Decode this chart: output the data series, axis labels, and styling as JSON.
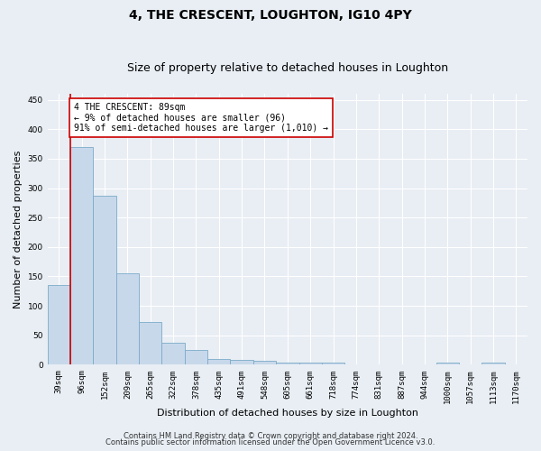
{
  "title": "4, THE CRESCENT, LOUGHTON, IG10 4PY",
  "subtitle": "Size of property relative to detached houses in Loughton",
  "xlabel": "Distribution of detached houses by size in Loughton",
  "ylabel": "Number of detached properties",
  "bar_color": "#c8d8eb",
  "bar_edge_color": "#7aaac8",
  "categories": [
    "39sqm",
    "96sqm",
    "152sqm",
    "209sqm",
    "265sqm",
    "322sqm",
    "378sqm",
    "435sqm",
    "491sqm",
    "548sqm",
    "605sqm",
    "661sqm",
    "718sqm",
    "774sqm",
    "831sqm",
    "887sqm",
    "944sqm",
    "1000sqm",
    "1057sqm",
    "1113sqm",
    "1170sqm"
  ],
  "values": [
    135,
    370,
    287,
    155,
    72,
    37,
    25,
    10,
    8,
    7,
    4,
    4,
    4,
    0,
    0,
    0,
    0,
    4,
    0,
    4,
    0
  ],
  "ylim": [
    0,
    460
  ],
  "yticks": [
    0,
    50,
    100,
    150,
    200,
    250,
    300,
    350,
    400,
    450
  ],
  "vline_x": 0.5,
  "annotation_text": "4 THE CRESCENT: 89sqm\n← 9% of detached houses are smaller (96)\n91% of semi-detached houses are larger (1,010) →",
  "annotation_box_color": "#ffffff",
  "annotation_border_color": "#cc0000",
  "vline_color": "#cc0000",
  "background_color": "#e8eef4",
  "footer_line1": "Contains HM Land Registry data © Crown copyright and database right 2024.",
  "footer_line2": "Contains public sector information licensed under the Open Government Licence v3.0.",
  "grid_color": "#ffffff",
  "title_fontsize": 10,
  "subtitle_fontsize": 9,
  "tick_fontsize": 6.5,
  "ylabel_fontsize": 8,
  "xlabel_fontsize": 8,
  "annotation_fontsize": 7,
  "footer_fontsize": 6
}
